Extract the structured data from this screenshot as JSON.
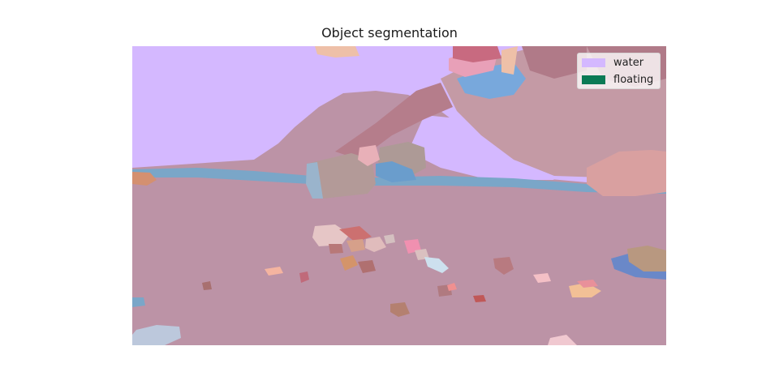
{
  "figure": {
    "title": "Object segmentation"
  },
  "legend": {
    "items": [
      {
        "label": "water",
        "color": "#d4b8ff"
      },
      {
        "label": "floating",
        "color": "#0b7a55"
      }
    ]
  },
  "palette": {
    "water": "#d4b8ff",
    "ground": "#bc93a6",
    "shoreline": "#7aa6c8",
    "person": "#c49aa5"
  }
}
